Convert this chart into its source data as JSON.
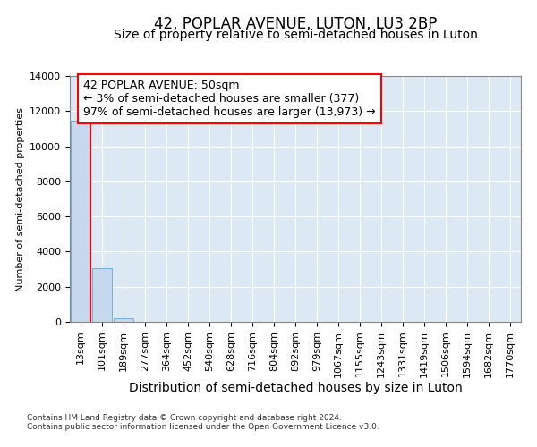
{
  "title": "42, POPLAR AVENUE, LUTON, LU3 2BP",
  "subtitle": "Size of property relative to semi-detached houses in Luton",
  "xlabel": "Distribution of semi-detached houses by size in Luton",
  "ylabel": "Number of semi-detached properties",
  "annotation_line1": "42 POPLAR AVENUE: 50sqm",
  "annotation_line2": "← 3% of semi-detached houses are smaller (377)",
  "annotation_line3": "97% of semi-detached houses are larger (13,973) →",
  "footnote1": "Contains HM Land Registry data © Crown copyright and database right 2024.",
  "footnote2": "Contains public sector information licensed under the Open Government Licence v3.0.",
  "bar_categories": [
    "13sqm",
    "101sqm",
    "189sqm",
    "277sqm",
    "364sqm",
    "452sqm",
    "540sqm",
    "628sqm",
    "716sqm",
    "804sqm",
    "892sqm",
    "979sqm",
    "1067sqm",
    "1155sqm",
    "1243sqm",
    "1331sqm",
    "1419sqm",
    "1506sqm",
    "1594sqm",
    "1682sqm",
    "1770sqm"
  ],
  "bar_heights": [
    11450,
    3050,
    200,
    0,
    0,
    0,
    0,
    0,
    0,
    0,
    0,
    0,
    0,
    0,
    0,
    0,
    0,
    0,
    0,
    0,
    0
  ],
  "bar_color": "#c5d8ee",
  "bar_edge_color": "#7aadd4",
  "ylim": [
    0,
    14000
  ],
  "yticks": [
    0,
    2000,
    4000,
    6000,
    8000,
    10000,
    12000,
    14000
  ],
  "background_color": "#dce9f5",
  "grid_color": "#ffffff",
  "title_fontsize": 12,
  "subtitle_fontsize": 10,
  "ylabel_fontsize": 8,
  "xlabel_fontsize": 10,
  "tick_fontsize": 8,
  "annotation_fontsize": 9,
  "footnote_fontsize": 6.5
}
